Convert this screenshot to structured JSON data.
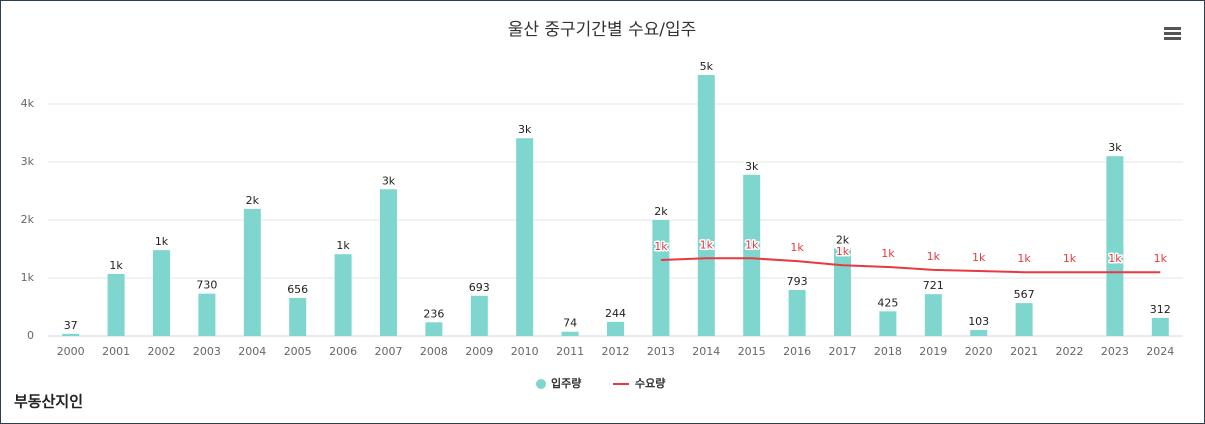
{
  "chart_data": {
    "type": "bar",
    "title": "울산 중구기간별 수요/입주",
    "categories": [
      "2000",
      "2001",
      "2002",
      "2003",
      "2004",
      "2005",
      "2006",
      "2007",
      "2008",
      "2009",
      "2010",
      "2011",
      "2012",
      "2013",
      "2014",
      "2015",
      "2016",
      "2017",
      "2018",
      "2019",
      "2020",
      "2021",
      "2022",
      "2023",
      "2024"
    ],
    "series": [
      {
        "name": "입주량",
        "type": "bar",
        "color": "#7fd6cf",
        "values": [
          37,
          1070,
          1480,
          730,
          2190,
          656,
          1410,
          2530,
          236,
          693,
          3410,
          74,
          244,
          2000,
          4500,
          2780,
          793,
          1510,
          425,
          721,
          103,
          567,
          null,
          3100,
          312
        ],
        "value_labels": [
          "37",
          "1k",
          "1k",
          "730",
          "2k",
          "656",
          "1k",
          "3k",
          "236",
          "693",
          "3k",
          "74",
          "244",
          "2k",
          "5k",
          "3k",
          "793",
          "2k",
          "425",
          "721",
          "103",
          "567",
          null,
          "3k",
          "312"
        ]
      },
      {
        "name": "수요량",
        "type": "line",
        "color": "#e8393f",
        "values": [
          null,
          null,
          null,
          null,
          null,
          null,
          null,
          null,
          null,
          null,
          null,
          null,
          null,
          1310,
          1340,
          1340,
          1290,
          1220,
          1190,
          1140,
          1120,
          1100,
          1100,
          1100,
          1100
        ],
        "value_labels": [
          null,
          null,
          null,
          null,
          null,
          null,
          null,
          null,
          null,
          null,
          null,
          null,
          null,
          "1k",
          "1k",
          "1k",
          "1k",
          "1k",
          "1k",
          "1k",
          "1k",
          "1k",
          "1k",
          "1k",
          "1k"
        ]
      }
    ],
    "ylim": [
      0,
      4500
    ],
    "yticks": [
      0,
      {
        "value": 1000,
        "label": "1k"
      },
      {
        "value": 2000,
        "label": "2k"
      },
      {
        "value": 3000,
        "label": "3k"
      },
      {
        "value": 4000,
        "label": "4k"
      }
    ],
    "grid": true,
    "legend": "bottom",
    "logo": "부동산지인"
  }
}
